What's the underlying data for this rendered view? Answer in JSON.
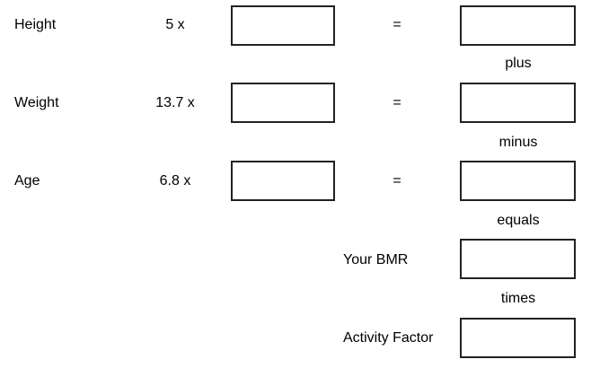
{
  "rows": [
    {
      "label": "Height",
      "coefficient": "5  x",
      "equals": "=",
      "input_value": "",
      "result_value": ""
    },
    {
      "label": "Weight",
      "coefficient": "13.7  x",
      "equals": "=",
      "input_value": "",
      "result_value": ""
    },
    {
      "label": "Age",
      "coefficient": "6.8  x",
      "equals": "=",
      "input_value": "",
      "result_value": ""
    }
  ],
  "operators": [
    "plus",
    "minus",
    "equals",
    "times"
  ],
  "bmr": {
    "label": "Your BMR",
    "value": ""
  },
  "activity_factor": {
    "label": "Activity Factor",
    "value": ""
  }
}
